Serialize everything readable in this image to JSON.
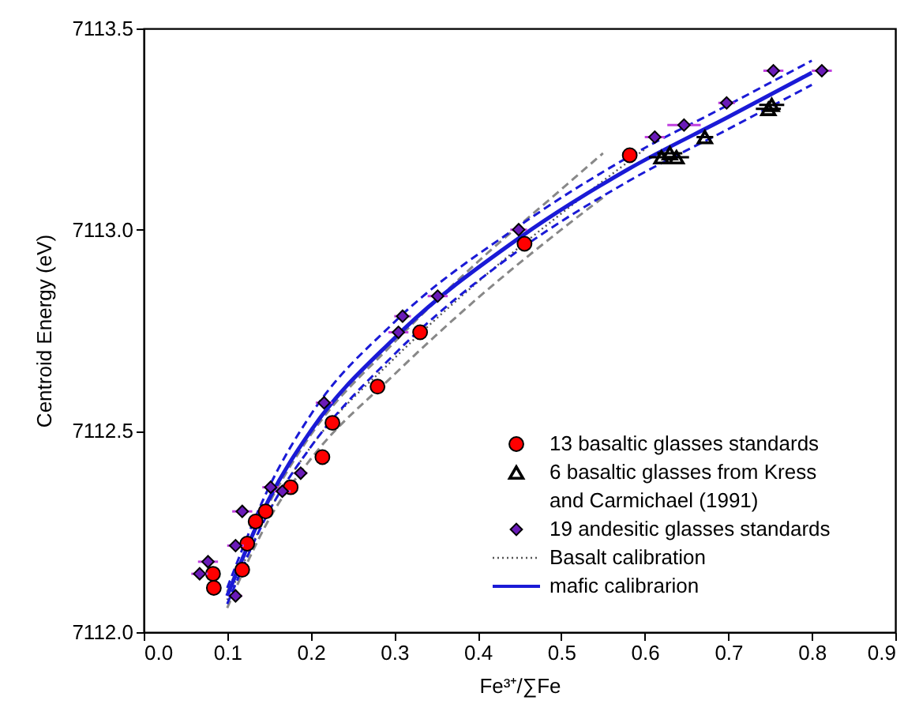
{
  "chart_data": {
    "type": "scatter",
    "xlabel": "Fe³⁺/∑Fe",
    "ylabel": "Centroid Energy (eV)",
    "xlim": [
      0,
      0.9
    ],
    "ylim": [
      7112.0,
      7113.5
    ],
    "xticks": [
      {
        "value": 0,
        "label": "0.0"
      },
      0.1,
      0.2,
      0.3,
      0.4,
      0.5,
      0.6,
      0.7,
      0.8,
      0.9
    ],
    "yticks": [
      {
        "value": 7112,
        "label": "7112.0"
      },
      7112.5,
      {
        "value": 7113,
        "label": "7113.0"
      },
      7113.5
    ],
    "grid": false,
    "legend": "bottom right",
    "series": [
      {
        "name": "13 basaltic glasses standards",
        "marker": "circle",
        "color": "#ff0000",
        "x": [
          0.084,
          0.083,
          0.118,
          0.124,
          0.134,
          0.146,
          0.176,
          0.214,
          0.226,
          0.28,
          0.331,
          0.456,
          0.582
        ],
        "values": [
          7112.11,
          7112.145,
          7112.155,
          7112.22,
          7112.275,
          7112.3,
          7112.36,
          7112.435,
          7112.52,
          7112.61,
          7112.745,
          7112.965,
          7113.185
        ]
      },
      {
        "name": "6 basaltic glasses from Kress and Carmichael (1991)",
        "marker": "triangle",
        "color": "#000000",
        "x": [
          0.62,
          0.63,
          0.638,
          0.672,
          0.748,
          0.752
        ],
        "values": [
          7113.18,
          7113.19,
          7113.18,
          7113.23,
          7113.3,
          7113.31
        ],
        "xerrors": [
          0.015,
          0.015,
          0.015,
          0.01,
          0.015,
          0.015
        ]
      },
      {
        "name": "19 andesitic glasses standards",
        "marker": "diamond",
        "color": "#6a1bb8",
        "x": [
          0.077,
          0.067,
          0.11,
          0.11,
          0.118,
          0.152,
          0.166,
          0.188,
          0.216,
          0.305,
          0.31,
          0.352,
          0.449,
          0.612,
          0.647,
          0.698,
          0.754,
          0.812
        ],
        "values": [
          7112.175,
          7112.145,
          7112.09,
          7112.215,
          7112.3,
          7112.36,
          7112.35,
          7112.395,
          7112.57,
          7112.745,
          7112.785,
          7112.835,
          7113.0,
          7113.23,
          7113.26,
          7113.315,
          7113.395,
          7113.395
        ],
        "xerrors": [
          0.012,
          0.01,
          0.008,
          0.01,
          0.012,
          0.01,
          0.01,
          0.008,
          0.01,
          0.012,
          0.01,
          0.012,
          0.01,
          0.012,
          0.02,
          0.01,
          0.012,
          0.012
        ]
      },
      {
        "name": "Basalt calibration",
        "type": "line",
        "line_style": "dotted",
        "color": "#555555",
        "x": [
          0.1,
          0.15,
          0.2,
          0.3,
          0.4,
          0.5,
          0.6
        ],
        "values": [
          7112.08,
          7112.3,
          7112.46,
          7112.68,
          7112.87,
          7113.04,
          7113.2
        ]
      },
      {
        "type": "line",
        "line_style": "dashed",
        "color": "#888888",
        "x": [
          0.1,
          0.15,
          0.2,
          0.3,
          0.4,
          0.5,
          0.55
        ],
        "values": [
          7112.06,
          7112.28,
          7112.43,
          7112.64,
          7112.83,
          7113.0,
          7113.08
        ]
      },
      {
        "type": "line",
        "line_style": "dashed",
        "color": "#888888",
        "x": [
          0.1,
          0.15,
          0.2,
          0.3,
          0.4,
          0.5,
          0.55
        ],
        "values": [
          7112.1,
          7112.32,
          7112.49,
          7112.72,
          7112.92,
          7113.1,
          7113.19
        ]
      },
      {
        "name": "mafic calibrarion",
        "type": "line",
        "line_style": "solid",
        "color": "#1a1ad6",
        "x": [
          0.1,
          0.15,
          0.2,
          0.3,
          0.45,
          0.58,
          0.7,
          0.8
        ],
        "values": [
          7112.09,
          7112.33,
          7112.5,
          7112.73,
          7112.98,
          7113.15,
          7113.28,
          7113.39
        ]
      },
      {
        "type": "line",
        "line_style": "dashed",
        "color": "#1a1ad6",
        "x": [
          0.1,
          0.15,
          0.2,
          0.3,
          0.45,
          0.58,
          0.7,
          0.8
        ],
        "values": [
          7112.07,
          7112.3,
          7112.46,
          7112.69,
          7112.95,
          7113.12,
          7113.25,
          7113.36
        ]
      },
      {
        "type": "line",
        "line_style": "dashed",
        "color": "#1a1ad6",
        "x": [
          0.1,
          0.15,
          0.2,
          0.3,
          0.45,
          0.58,
          0.7,
          0.8
        ],
        "values": [
          7112.11,
          7112.36,
          7112.54,
          7112.77,
          7113.01,
          7113.18,
          7113.31,
          7113.42
        ]
      }
    ]
  }
}
